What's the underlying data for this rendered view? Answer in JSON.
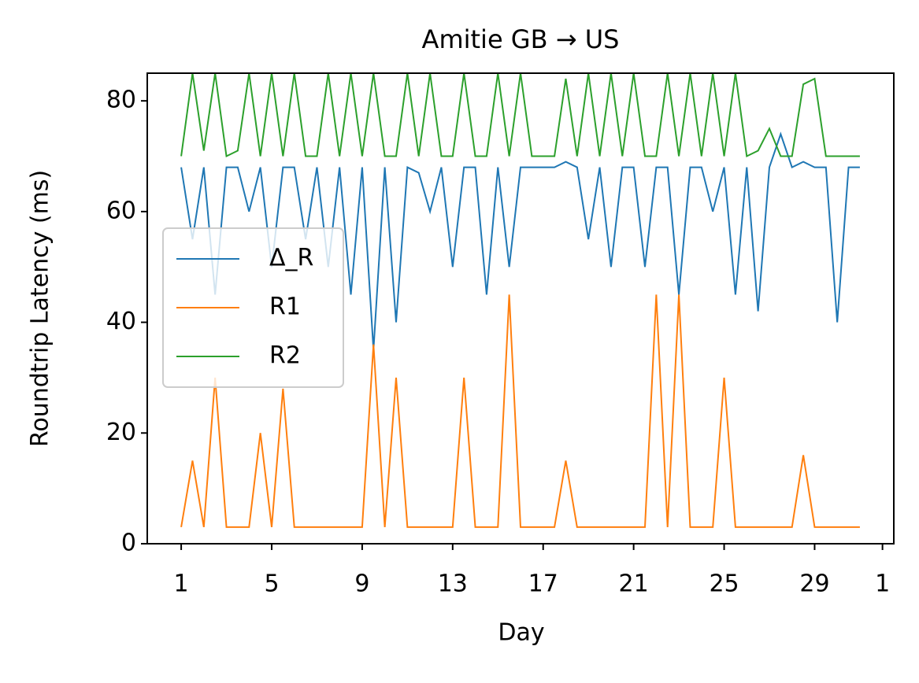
{
  "chart_data": {
    "type": "line",
    "title": "Amitie GB → US",
    "xlabel": "Day",
    "ylabel": "Roundtrip Latency (ms)",
    "x": [
      1,
      1.5,
      2,
      2.5,
      3,
      3.5,
      4,
      4.5,
      5,
      5.5,
      6,
      6.5,
      7,
      7.5,
      8,
      8.5,
      9,
      9.5,
      10,
      10.5,
      11,
      11.5,
      12,
      12.5,
      13,
      13.5,
      14,
      14.5,
      15,
      15.5,
      16,
      16.5,
      17,
      17.5,
      18,
      18.5,
      19,
      19.5,
      20,
      20.5,
      21,
      21.5,
      22,
      22.5,
      23,
      23.5,
      24,
      24.5,
      25,
      25.5,
      26,
      26.5,
      27,
      27.5,
      28,
      28.5,
      29,
      29.5,
      30,
      30.5,
      31
    ],
    "series": [
      {
        "name": "Δ_R",
        "color": "#1f77b4",
        "values": [
          68,
          55,
          68,
          45,
          68,
          68,
          60,
          68,
          50,
          68,
          68,
          55,
          68,
          50,
          68,
          45,
          68,
          35,
          68,
          40,
          68,
          67,
          60,
          68,
          50,
          68,
          68,
          45,
          68,
          50,
          68,
          68,
          68,
          68,
          69,
          68,
          55,
          68,
          50,
          68,
          68,
          50,
          68,
          68,
          45,
          68,
          68,
          60,
          68,
          45,
          68,
          42,
          68,
          74,
          68,
          69,
          68,
          68,
          40,
          68,
          68
        ]
      },
      {
        "name": "R1",
        "color": "#ff7f0e",
        "values": [
          3,
          15,
          3,
          30,
          3,
          3,
          3,
          20,
          3,
          28,
          3,
          3,
          3,
          3,
          3,
          3,
          3,
          36,
          3,
          30,
          3,
          3,
          3,
          3,
          3,
          30,
          3,
          3,
          3,
          45,
          3,
          3,
          3,
          3,
          15,
          3,
          3,
          3,
          3,
          3,
          3,
          3,
          45,
          3,
          45,
          3,
          3,
          3,
          30,
          3,
          3,
          3,
          3,
          3,
          3,
          16,
          3,
          3,
          3,
          3,
          3
        ]
      },
      {
        "name": "R2",
        "color": "#2ca02c",
        "values": [
          70,
          85,
          71,
          85,
          70,
          71,
          85,
          70,
          85,
          70,
          85,
          70,
          70,
          85,
          70,
          85,
          70,
          85,
          70,
          70,
          85,
          70,
          85,
          70,
          70,
          85,
          70,
          70,
          85,
          70,
          85,
          70,
          70,
          70,
          84,
          70,
          85,
          70,
          85,
          70,
          85,
          70,
          70,
          85,
          70,
          85,
          70,
          85,
          70,
          85,
          70,
          71,
          75,
          70,
          70,
          83,
          84,
          70,
          70,
          70,
          70
        ]
      }
    ],
    "xlim": [
      -0.5,
      32.5
    ],
    "xticks": [
      1,
      5,
      9,
      13,
      17,
      21,
      25,
      29,
      {
        "value": 32,
        "label": "1"
      }
    ],
    "ylim": [
      0,
      85
    ],
    "yticks": [
      0,
      20,
      40,
      60,
      80
    ],
    "legend": "center left"
  }
}
